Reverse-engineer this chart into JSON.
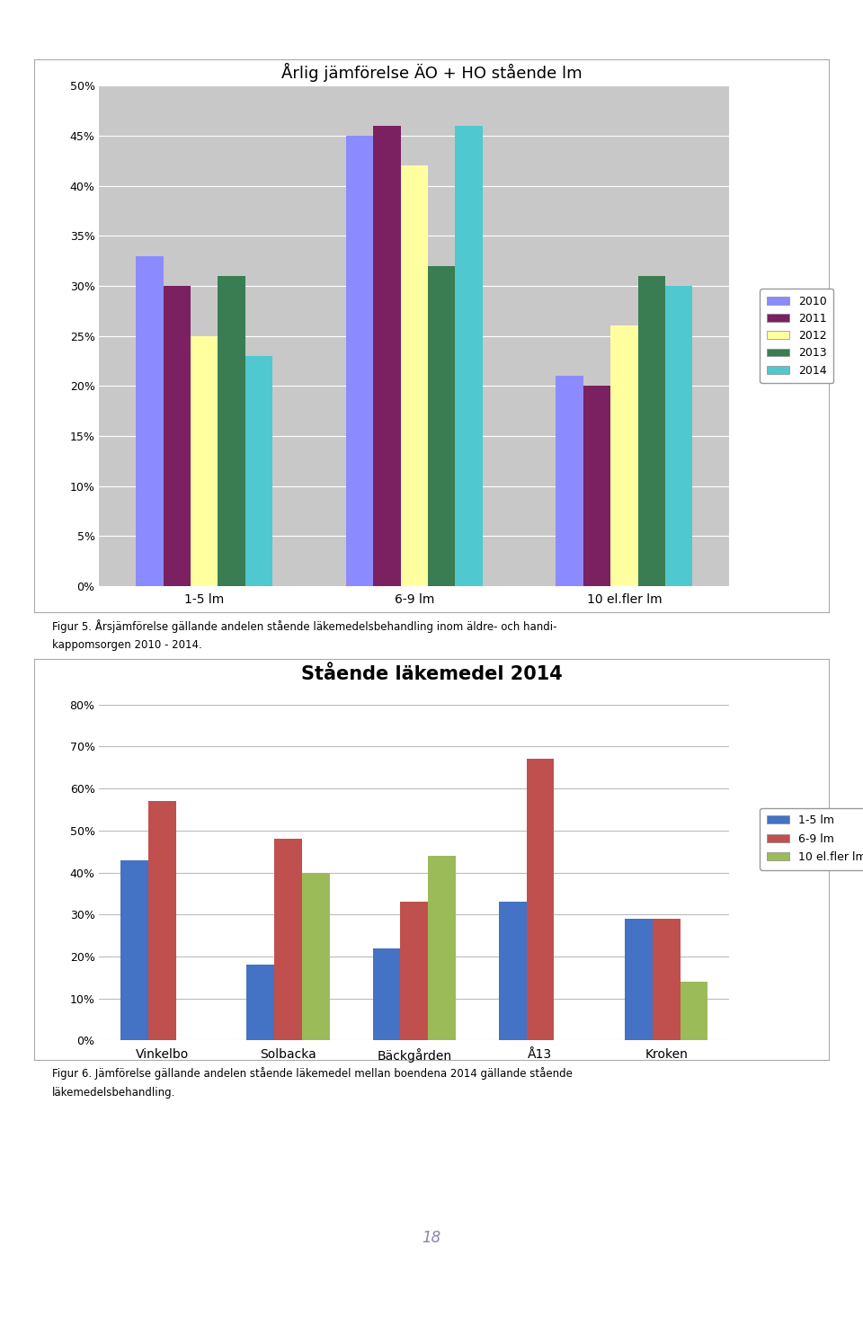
{
  "chart1": {
    "title": "Årlig jämförelse ÄO + HO stående lm",
    "categories": [
      "1-5 lm",
      "6-9 lm",
      "10 el.fler lm"
    ],
    "years": [
      "2010",
      "2011",
      "2012",
      "2013",
      "2014"
    ],
    "values": {
      "2010": [
        0.33,
        0.45,
        0.21
      ],
      "2011": [
        0.3,
        0.46,
        0.2
      ],
      "2012": [
        0.25,
        0.42,
        0.26
      ],
      "2013": [
        0.31,
        0.32,
        0.31
      ],
      "2014": [
        0.23,
        0.46,
        0.3
      ]
    },
    "colors": {
      "2010": "#8B8BFF",
      "2011": "#7B2060",
      "2012": "#FFFFA0",
      "2013": "#3A7D52",
      "2014": "#50C8D0"
    },
    "ylim": [
      0,
      0.5
    ],
    "yticks": [
      0.0,
      0.05,
      0.1,
      0.15,
      0.2,
      0.25,
      0.3,
      0.35,
      0.4,
      0.45,
      0.5
    ],
    "ytick_labels": [
      "0%",
      "5%",
      "10%",
      "15%",
      "20%",
      "25%",
      "30%",
      "35%",
      "40%",
      "45%",
      "50%"
    ],
    "plot_bg": "#C8C8C8",
    "caption_line1": "Figur 5. Årsjämförelse gällande andelen stående läkemedelsbehandling inom äldre- och handi-",
    "caption_line2": "kappomsorgen 2010 - 2014."
  },
  "chart2": {
    "title": "Stående läkemedel 2014",
    "categories": [
      "Vinkelbo",
      "Solbacka",
      "Bäckgården",
      "Å13",
      "Kroken"
    ],
    "series": [
      "1-5 lm",
      "6-9 lm",
      "10 el.fler lm"
    ],
    "values": {
      "1-5 lm": [
        0.43,
        0.18,
        0.22,
        0.33,
        0.29
      ],
      "6-9 lm": [
        0.57,
        0.48,
        0.33,
        0.67,
        0.29
      ],
      "10 el.fler lm": [
        0.0,
        0.4,
        0.44,
        0.0,
        0.14
      ]
    },
    "colors": {
      "1-5 lm": "#4472C4",
      "6-9 lm": "#C0504D",
      "10 el.fler lm": "#9BBB59"
    },
    "ylim": [
      0,
      0.8
    ],
    "yticks": [
      0.0,
      0.1,
      0.2,
      0.3,
      0.4,
      0.5,
      0.6,
      0.7,
      0.8
    ],
    "ytick_labels": [
      "0%",
      "10%",
      "20%",
      "30%",
      "40%",
      "50%",
      "60%",
      "70%",
      "80%"
    ],
    "caption_line1": "Figur 6. Jämförelse gällande andelen stående läkemedel mellan boendena 2014 gällande stående",
    "caption_line2": "läkemedelsbehandling."
  },
  "page_bg": "#FFFFFF",
  "page_number": "18",
  "top_bar_color": "#7AB648",
  "bottom_bar_color": "#7AB648"
}
